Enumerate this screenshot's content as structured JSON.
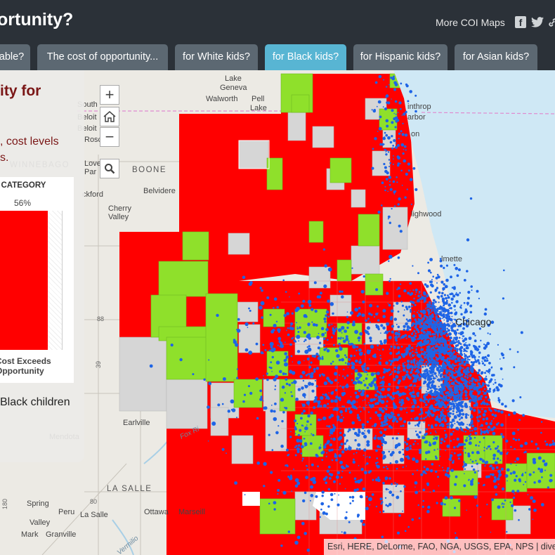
{
  "header": {
    "title": "ortunity?",
    "more_maps": "More COI Maps",
    "facebook": "f",
    "link": "🔗"
  },
  "tabs": [
    {
      "label": "able?",
      "active": false
    },
    {
      "label": "The cost of opportunity...",
      "active": false
    },
    {
      "label": "for White kids?",
      "active": false
    },
    {
      "label": "for Black kids?",
      "active": true
    },
    {
      "label": "for Hispanic kids?",
      "active": false
    },
    {
      "label": "for Asian kids?",
      "active": false
    }
  ],
  "controls": {
    "zoom_in": "+",
    "zoom_out": "−"
  },
  "panel": {
    "title": "ity for",
    "desc_line1": ", cost levels",
    "desc_line2": "s.",
    "chart_title": "H CATEGORY",
    "pct": "56%",
    "category_line1": "Cost Exceeds",
    "category_line2": "Opportunity",
    "footer": "Black children"
  },
  "chart_data": {
    "type": "bar",
    "title": "H CATEGORY",
    "categories": [
      "Cost Exceeds Opportunity"
    ],
    "values": [
      56
    ],
    "unit": "%"
  },
  "map": {
    "places": [
      {
        "label": "Lake Geneva",
        "lines": [
          "Lake",
          "Geneva"
        ]
      },
      {
        "label": "Walworth"
      },
      {
        "label": "Pell Lake",
        "lines": [
          "Pell",
          "Lake"
        ]
      },
      {
        "label": "South Beloit",
        "lines": [
          "South",
          "Beloit"
        ]
      },
      {
        "label": "Beloit"
      },
      {
        "label": "Rosco"
      },
      {
        "label": "Loves Park",
        "lines": [
          "Love",
          "Par"
        ]
      },
      {
        "label": "Belvidere"
      },
      {
        "label": "Rockford",
        "text": "ckford"
      },
      {
        "label": "Cherry Valley",
        "lines": [
          "Cherry",
          "Valley"
        ]
      },
      {
        "label": "Winthrop Harbor",
        "lines": [
          "inthrop",
          "arbor"
        ]
      },
      {
        "label": "Zion",
        "text": "on"
      },
      {
        "label": "Highwood",
        "text": "lighwood"
      },
      {
        "label": "Wilmette",
        "text": "lmette"
      },
      {
        "label": "Chicago"
      },
      {
        "label": "Earlville"
      },
      {
        "label": "Mendota"
      },
      {
        "label": "La Salle"
      },
      {
        "label": "Spring Valley",
        "lines": [
          "Spring",
          "Valley"
        ]
      },
      {
        "label": "Peru"
      },
      {
        "label": "Ottawa"
      },
      {
        "label": "Marseilles",
        "text": "Marseill"
      },
      {
        "label": "Mark"
      },
      {
        "label": "Granville"
      }
    ],
    "regions": [
      "BOONE",
      "WINNEBAGO",
      "LA SALLE"
    ],
    "rivers": [
      "Fox Ri",
      "Vermilio"
    ],
    "highways": [
      "88",
      "39",
      "80",
      "180"
    ]
  },
  "attribution": "Esri, HERE, DeLorme, FAO, NGA, USGS, EPA, NPS | diver",
  "colors": {
    "high_cost": "#ff0000",
    "affordable": "#8fe02b",
    "no_data": "#d6d6d6",
    "black_children_dot": "#1e64e6",
    "lake": "#cfe8f5",
    "active_tab": "#58b5d3",
    "header_bg": "#2b3138"
  }
}
